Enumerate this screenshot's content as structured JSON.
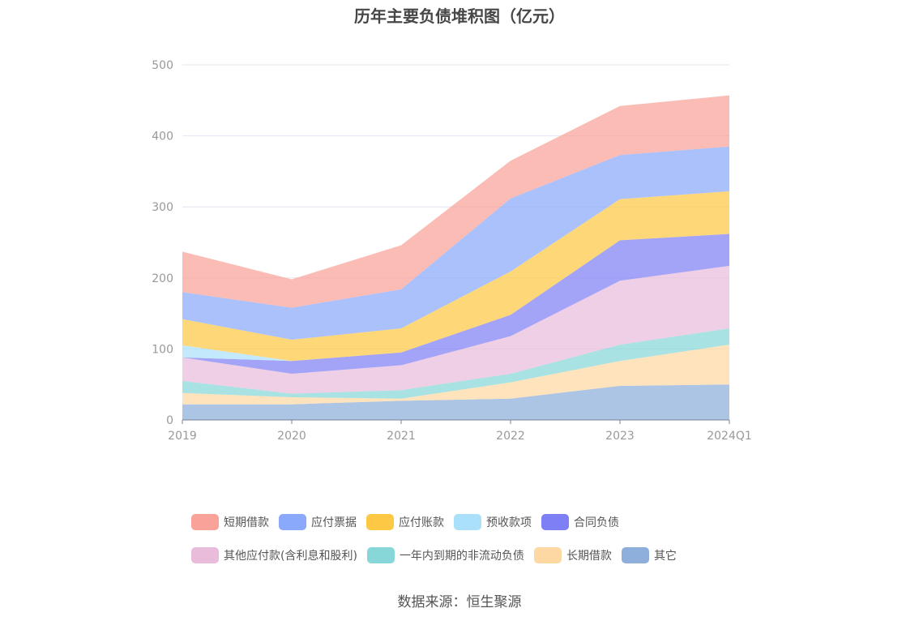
{
  "chart_data": {
    "type": "area",
    "stacked": true,
    "title": "历年主要负债堆积图（亿元）",
    "categories": [
      "2019",
      "2020",
      "2021",
      "2022",
      "2023",
      "2024Q1"
    ],
    "ylim": [
      0,
      500
    ],
    "yticks": [
      0,
      100,
      200,
      300,
      400,
      500
    ],
    "grid": true,
    "legend_position": "bottom",
    "series": [
      {
        "name": "其它",
        "color": "#8eaedb",
        "values": [
          22,
          22,
          27,
          30,
          48,
          50
        ]
      },
      {
        "name": "长期借款",
        "color": "#fdd8a2",
        "values": [
          16,
          10,
          3,
          23,
          35,
          56
        ]
      },
      {
        "name": "一年内到期的非流动负债",
        "color": "#87d7d8",
        "values": [
          17,
          5,
          12,
          12,
          23,
          23
        ]
      },
      {
        "name": "其他应付款(含利息和股利)",
        "color": "#e9bcdb",
        "values": [
          33,
          28,
          35,
          53,
          90,
          88
        ]
      },
      {
        "name": "合同负债",
        "color": "#7f7ff5",
        "values": [
          0,
          18,
          18,
          30,
          57,
          45
        ]
      },
      {
        "name": "预收款项",
        "color": "#abe0fb",
        "values": [
          17,
          0,
          0,
          0,
          0,
          0
        ]
      },
      {
        "name": "应付账款",
        "color": "#fdc944",
        "values": [
          37,
          30,
          34,
          61,
          58,
          60
        ]
      },
      {
        "name": "应付票据",
        "color": "#8ba9fb",
        "values": [
          38,
          45,
          55,
          103,
          62,
          63
        ]
      },
      {
        "name": "短期借款",
        "color": "#f9a29a",
        "values": [
          57,
          40,
          62,
          53,
          69,
          72
        ]
      }
    ],
    "legend_order": [
      "短期借款",
      "应付票据",
      "应付账款",
      "预收款项",
      "合同负债",
      "其他应付款(含利息和股利)",
      "一年内到期的非流动负债",
      "长期借款",
      "其它"
    ]
  },
  "source": "数据来源：恒生聚源"
}
